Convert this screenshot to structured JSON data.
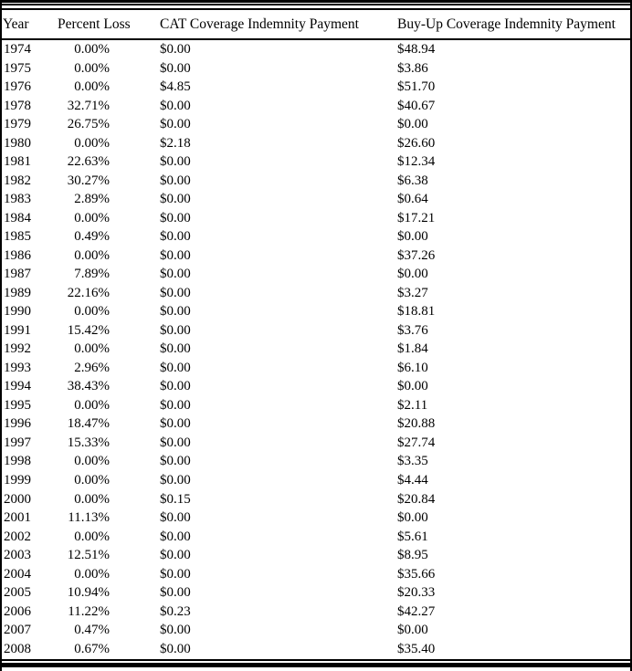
{
  "table": {
    "columns": [
      {
        "label": "Year"
      },
      {
        "label": "Percent Loss"
      },
      {
        "label": "CAT Coverage Indemnity Payment"
      },
      {
        "label": "Buy-Up Coverage Indemnity Payment"
      }
    ],
    "rows": [
      [
        "1974",
        "0.00%",
        "$0.00",
        "$48.94"
      ],
      [
        "1975",
        "0.00%",
        "$0.00",
        "$3.86"
      ],
      [
        "1976",
        "0.00%",
        "$4.85",
        "$51.70"
      ],
      [
        "1978",
        "32.71%",
        "$0.00",
        "$40.67"
      ],
      [
        "1979",
        "26.75%",
        "$0.00",
        "$0.00"
      ],
      [
        "1980",
        "0.00%",
        "$2.18",
        "$26.60"
      ],
      [
        "1981",
        "22.63%",
        "$0.00",
        "$12.34"
      ],
      [
        "1982",
        "30.27%",
        "$0.00",
        "$6.38"
      ],
      [
        "1983",
        "2.89%",
        "$0.00",
        "$0.64"
      ],
      [
        "1984",
        "0.00%",
        "$0.00",
        "$17.21"
      ],
      [
        "1985",
        "0.49%",
        "$0.00",
        "$0.00"
      ],
      [
        "1986",
        "0.00%",
        "$0.00",
        "$37.26"
      ],
      [
        "1987",
        "7.89%",
        "$0.00",
        "$0.00"
      ],
      [
        "1989",
        "22.16%",
        "$0.00",
        "$3.27"
      ],
      [
        "1990",
        "0.00%",
        "$0.00",
        "$18.81"
      ],
      [
        "1991",
        "15.42%",
        "$0.00",
        "$3.76"
      ],
      [
        "1992",
        "0.00%",
        "$0.00",
        "$1.84"
      ],
      [
        "1993",
        "2.96%",
        "$0.00",
        "$6.10"
      ],
      [
        "1994",
        "38.43%",
        "$0.00",
        "$0.00"
      ],
      [
        "1995",
        "0.00%",
        "$0.00",
        "$2.11"
      ],
      [
        "1996",
        "18.47%",
        "$0.00",
        "$20.88"
      ],
      [
        "1997",
        "15.33%",
        "$0.00",
        "$27.74"
      ],
      [
        "1998",
        "0.00%",
        "$0.00",
        "$3.35"
      ],
      [
        "1999",
        "0.00%",
        "$0.00",
        "$4.44"
      ],
      [
        "2000",
        "0.00%",
        "$0.15",
        "$20.84"
      ],
      [
        "2001",
        "11.13%",
        "$0.00",
        "$0.00"
      ],
      [
        "2002",
        "0.00%",
        "$0.00",
        "$5.61"
      ],
      [
        "2003",
        "12.51%",
        "$0.00",
        "$8.95"
      ],
      [
        "2004",
        "0.00%",
        "$0.00",
        "$35.66"
      ],
      [
        "2005",
        "10.94%",
        "$0.00",
        "$20.33"
      ],
      [
        "2006",
        "11.22%",
        "$0.23",
        "$42.27"
      ],
      [
        "2007",
        "0.47%",
        "$0.00",
        "$0.00"
      ],
      [
        "2008",
        "0.67%",
        "$0.00",
        "$35.40"
      ]
    ]
  },
  "chart_data": {
    "type": "table",
    "columns": [
      "Year",
      "Percent Loss",
      "CAT Coverage Indemnity Payment",
      "Buy-Up Coverage Indemnity Payment"
    ],
    "rows": [
      [
        "1974",
        "0.00%",
        "$0.00",
        "$48.94"
      ],
      [
        "1975",
        "0.00%",
        "$0.00",
        "$3.86"
      ],
      [
        "1976",
        "0.00%",
        "$4.85",
        "$51.70"
      ],
      [
        "1978",
        "32.71%",
        "$0.00",
        "$40.67"
      ],
      [
        "1979",
        "26.75%",
        "$0.00",
        "$0.00"
      ],
      [
        "1980",
        "0.00%",
        "$2.18",
        "$26.60"
      ],
      [
        "1981",
        "22.63%",
        "$0.00",
        "$12.34"
      ],
      [
        "1982",
        "30.27%",
        "$0.00",
        "$6.38"
      ],
      [
        "1983",
        "2.89%",
        "$0.00",
        "$0.64"
      ],
      [
        "1984",
        "0.00%",
        "$0.00",
        "$17.21"
      ],
      [
        "1985",
        "0.49%",
        "$0.00",
        "$0.00"
      ],
      [
        "1986",
        "0.00%",
        "$0.00",
        "$37.26"
      ],
      [
        "1987",
        "7.89%",
        "$0.00",
        "$0.00"
      ],
      [
        "1989",
        "22.16%",
        "$0.00",
        "$3.27"
      ],
      [
        "1990",
        "0.00%",
        "$0.00",
        "$18.81"
      ],
      [
        "1991",
        "15.42%",
        "$0.00",
        "$3.76"
      ],
      [
        "1992",
        "0.00%",
        "$0.00",
        "$1.84"
      ],
      [
        "1993",
        "2.96%",
        "$0.00",
        "$6.10"
      ],
      [
        "1994",
        "38.43%",
        "$0.00",
        "$0.00"
      ],
      [
        "1995",
        "0.00%",
        "$0.00",
        "$2.11"
      ],
      [
        "1996",
        "18.47%",
        "$0.00",
        "$20.88"
      ],
      [
        "1997",
        "15.33%",
        "$0.00",
        "$27.74"
      ],
      [
        "1998",
        "0.00%",
        "$0.00",
        "$3.35"
      ],
      [
        "1999",
        "0.00%",
        "$0.00",
        "$4.44"
      ],
      [
        "2000",
        "0.00%",
        "$0.15",
        "$20.84"
      ],
      [
        "2001",
        "11.13%",
        "$0.00",
        "$0.00"
      ],
      [
        "2002",
        "0.00%",
        "$0.00",
        "$5.61"
      ],
      [
        "2003",
        "12.51%",
        "$0.00",
        "$8.95"
      ],
      [
        "2004",
        "0.00%",
        "$0.00",
        "$35.66"
      ],
      [
        "2005",
        "10.94%",
        "$0.00",
        "$20.33"
      ],
      [
        "2006",
        "11.22%",
        "$0.23",
        "$42.27"
      ],
      [
        "2007",
        "0.47%",
        "$0.00",
        "$0.00"
      ],
      [
        "2008",
        "0.67%",
        "$0.00",
        "$35.40"
      ]
    ]
  },
  "colors": {
    "text": "#000000",
    "rule": "#000000",
    "background": "#ffffff"
  }
}
